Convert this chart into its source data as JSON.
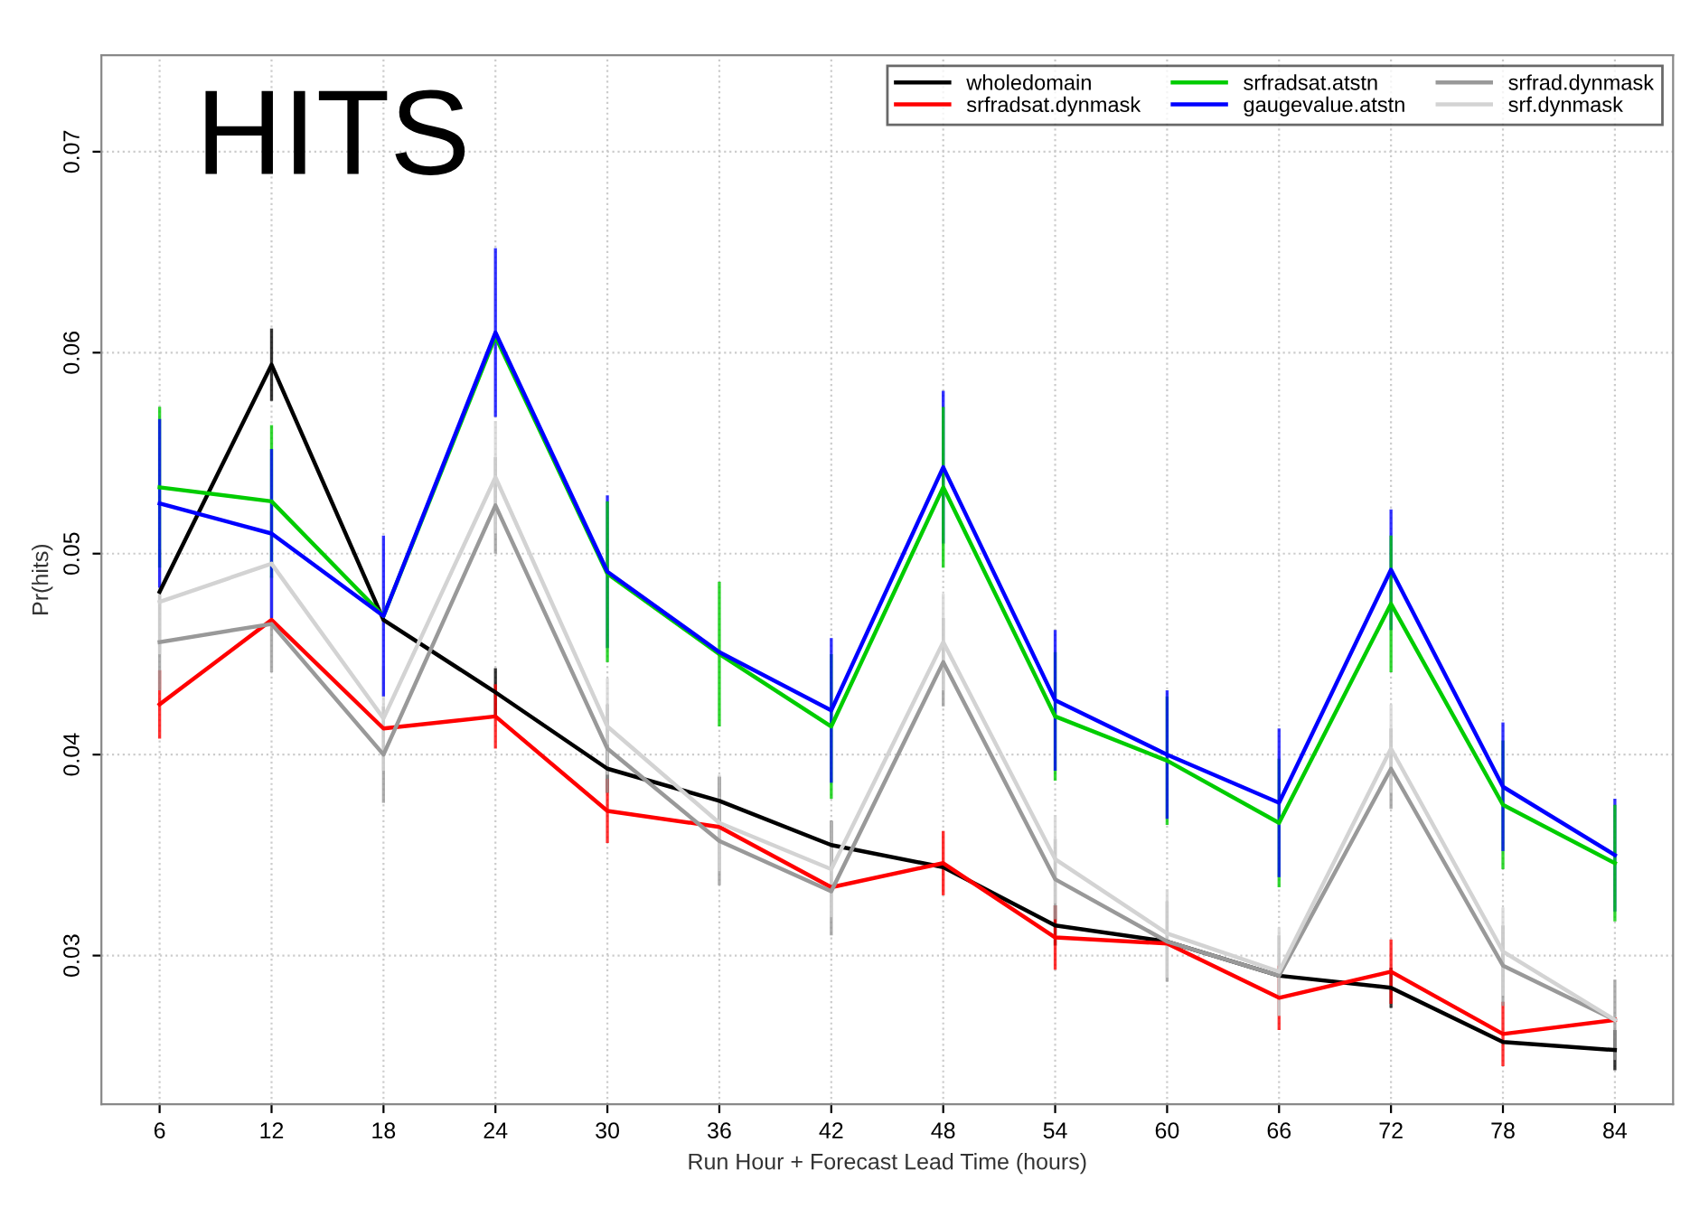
{
  "chart_data": {
    "type": "line",
    "title": "HITS",
    "xlabel": "Run Hour + Forecast Lead Time (hours)",
    "ylabel": "Pr(hits)",
    "x": [
      6,
      12,
      18,
      24,
      30,
      36,
      42,
      48,
      54,
      60,
      66,
      72,
      78,
      84
    ],
    "xlim": [
      2.88,
      87.12
    ],
    "xticks": [
      6,
      12,
      18,
      24,
      30,
      36,
      42,
      48,
      54,
      60,
      66,
      72,
      78,
      84
    ],
    "ylim": [
      0.0226,
      0.0748
    ],
    "yticks": [
      0.03,
      0.04,
      0.05,
      0.06,
      0.07
    ],
    "grid": true,
    "legend": "top right",
    "marker": "none",
    "line_style": "solid",
    "series": [
      {
        "name": "wholedomain",
        "color": "#000000",
        "values": [
          0.0481,
          0.0594,
          0.0467,
          0.0431,
          0.0393,
          0.0377,
          0.0355,
          0.0344,
          0.0315,
          0.0307,
          0.029,
          0.0284,
          0.0257,
          0.0253
        ],
        "errors": [
          null,
          0.0018,
          null,
          0.0012,
          0.0012,
          0.0012,
          0.0012,
          null,
          0.001,
          null,
          null,
          0.001,
          null,
          0.001
        ]
      },
      {
        "name": "srfradsat.dynmask",
        "color": "#ff0000",
        "values": [
          0.0425,
          0.0467,
          0.0413,
          0.0419,
          0.0372,
          0.0364,
          0.0334,
          0.0346,
          0.0309,
          0.0306,
          0.0279,
          0.0292,
          0.0261,
          0.0268
        ],
        "errors": [
          0.0017,
          null,
          null,
          0.0016,
          0.0016,
          null,
          null,
          0.0016,
          0.0016,
          null,
          0.0016,
          0.0016,
          0.0016,
          null
        ]
      },
      {
        "name": "srfradsat.atstn",
        "color": "#00cc00",
        "values": [
          0.0533,
          0.0526,
          0.0469,
          0.0608,
          0.049,
          0.045,
          0.0414,
          0.0533,
          0.0419,
          0.0397,
          0.0366,
          0.0475,
          0.0375,
          0.0346
        ],
        "errors": [
          0.004,
          0.0038,
          null,
          null,
          [
            0.0446,
            0.0526
          ],
          0.0036,
          0.0036,
          0.004,
          0.0032,
          0.0032,
          0.0032,
          0.0034,
          0.0032,
          0.0029
        ]
      },
      {
        "name": "gaugevalue.atstn",
        "color": "#0000ff",
        "values": [
          0.0525,
          0.051,
          0.0469,
          0.061,
          0.0491,
          0.0451,
          0.0422,
          0.0543,
          0.0427,
          0.04,
          0.0376,
          0.0492,
          0.0384,
          0.035
        ],
        "errors": [
          0.0042,
          0.0042,
          0.004,
          0.0042,
          0.0038,
          null,
          0.0036,
          0.0038,
          0.0035,
          0.0032,
          0.0037,
          0.003,
          0.0032,
          0.0028
        ]
      },
      {
        "name": "srfrad.dynmask",
        "color": "#999999",
        "values": [
          0.0456,
          0.0465,
          0.04,
          0.0524,
          0.0403,
          0.0357,
          0.0332,
          0.0446,
          0.0338,
          0.0307,
          0.029,
          0.0393,
          0.0295,
          0.0268
        ],
        "errors": [
          0.0024,
          0.0024,
          0.0024,
          0.0024,
          0.0022,
          0.0022,
          0.0022,
          0.0022,
          0.002,
          0.002,
          0.002,
          0.002,
          0.002,
          0.002
        ]
      },
      {
        "name": "srf.dynmask",
        "color": "#d3d3d3",
        "values": [
          0.0476,
          0.0495,
          0.0418,
          0.0538,
          0.0414,
          0.0366,
          0.0343,
          0.0456,
          0.0348,
          0.0311,
          0.0292,
          0.0403,
          0.0302,
          0.0268
        ],
        "errors": [
          0.0026,
          0.0026,
          0.0026,
          0.0028,
          0.0024,
          0.0024,
          0.0024,
          0.0024,
          0.0022,
          0.0022,
          0.0022,
          0.0022,
          0.0022,
          null
        ]
      }
    ]
  }
}
